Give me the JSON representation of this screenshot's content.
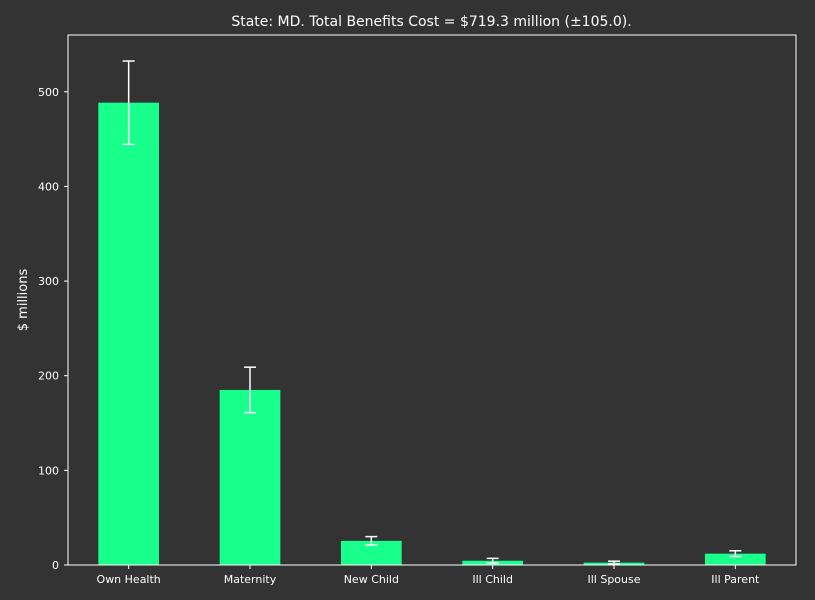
{
  "chart_data": {
    "type": "bar",
    "title": "State: MD. Total Benefits Cost = $719.3 million (±105.0).",
    "xlabel": "",
    "ylabel": "$ millions",
    "categories": [
      "Own Health",
      "Maternity",
      "New Child",
      "Ill Child",
      "Ill Spouse",
      "Ill Parent"
    ],
    "values": [
      488.5,
      185.0,
      25.5,
      4.5,
      2.5,
      12.0
    ],
    "errors": [
      44.0,
      24.0,
      4.5,
      2.5,
      1.5,
      3.0
    ],
    "ylim": [
      0,
      560
    ],
    "yticks": [
      0,
      100,
      200,
      300,
      400,
      500
    ],
    "grid": false,
    "legend": "none",
    "colors": {
      "background": "#333333",
      "bar": "#19ff8c",
      "axes": "#ffffff",
      "text": "#ffffff",
      "errorbar": "#ffffff"
    }
  }
}
